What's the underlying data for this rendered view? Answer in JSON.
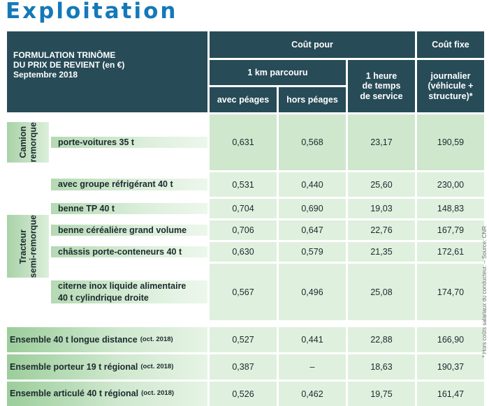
{
  "title": "Exploitation",
  "header": {
    "main": [
      "FORMULATION TRINÔME",
      "DU PRIX DE REVIENT (en €)",
      "Septembre 2018"
    ],
    "cout_pour": "Coût pour",
    "cout_fixe": "Coût fixe",
    "km": "1 km parcouru",
    "avec_peages": "avec péages",
    "hors_peages": "hors péages",
    "heure": [
      "1 heure",
      "de temps",
      "de service"
    ],
    "journalier": [
      "journalier",
      "(véhicule +",
      "structure)*"
    ]
  },
  "groups": {
    "camion": [
      "Camion",
      "remorque"
    ],
    "tracteur": [
      "Tracteur",
      "semi-remorque"
    ]
  },
  "rows": [
    {
      "label": [
        "porte-voitures 35 t"
      ],
      "avec": "0,631",
      "hors": "0,568",
      "heure": "23,17",
      "fixe": "190,59"
    },
    {
      "label": [
        "avec groupe réfrigérant 40 t"
      ],
      "avec": "0,531",
      "hors": "0,440",
      "heure": "25,60",
      "fixe": "230,00"
    },
    {
      "label": [
        "benne TP 40 t"
      ],
      "avec": "0,704",
      "hors": "0,690",
      "heure": "19,03",
      "fixe": "148,83"
    },
    {
      "label": [
        "benne céréalière grand volume"
      ],
      "avec": "0,706",
      "hors": "0,647",
      "heure": "22,76",
      "fixe": "167,79"
    },
    {
      "label": [
        "châssis porte-conteneurs 40 t"
      ],
      "avec": "0,630",
      "hors": "0,579",
      "heure": "21,35",
      "fixe": "172,61"
    },
    {
      "label": [
        "citerne inox liquide alimentaire",
        "40 t cylindrique droite"
      ],
      "avec": "0,567",
      "hors": "0,496",
      "heure": "25,08",
      "fixe": "174,70"
    }
  ],
  "ensembles": [
    {
      "label": "Ensemble 40 t longue distance",
      "note": "(oct. 2018)",
      "avec": "0,527",
      "hors": "0,441",
      "heure": "22,88",
      "fixe": "166,90"
    },
    {
      "label": "Ensemble porteur 19 t régional",
      "note": "(oct. 2018)",
      "avec": "0,387",
      "hors": "–",
      "heure": "18,63",
      "fixe": "190,37"
    },
    {
      "label": "Ensemble articulé 40 t régional",
      "note": "(oct. 2018)",
      "avec": "0,526",
      "hors": "0,462",
      "heure": "19,75",
      "fixe": "161,47"
    }
  ],
  "side_note": "* Hors coûts salariaux du conducteur. – Source: CNR"
}
